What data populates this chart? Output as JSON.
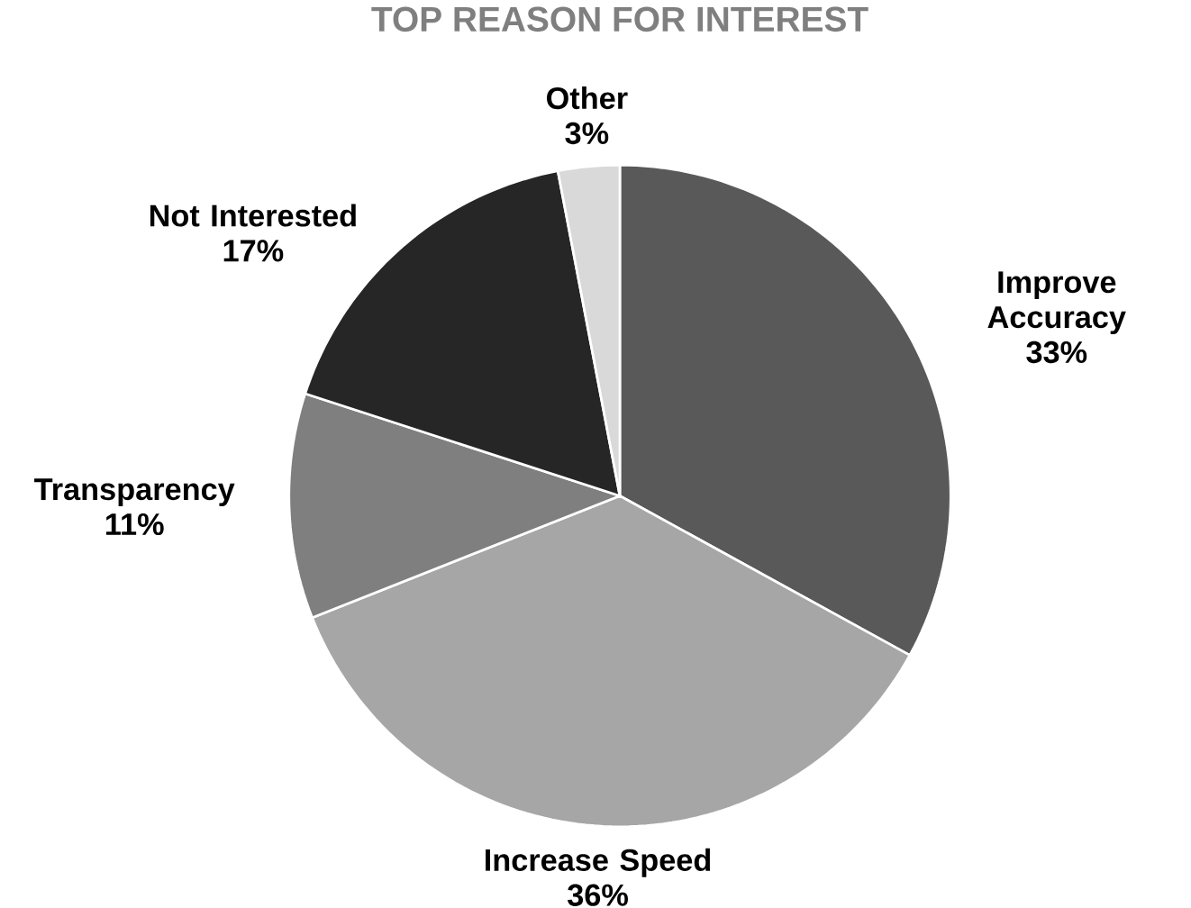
{
  "chart_data": {
    "type": "pie",
    "title": "TOP REASON FOR INTEREST",
    "categories": [
      "Improve Accuracy",
      "Increase Speed",
      "Transparency",
      "Not Interested",
      "Other"
    ],
    "values": [
      33,
      36,
      11,
      17,
      3
    ],
    "colors": [
      "#595959",
      "#a6a6a6",
      "#7f7f7f",
      "#262626",
      "#d9d9d9"
    ],
    "value_labels": [
      "33%",
      "36%",
      "11%",
      "17%",
      "3%"
    ]
  }
}
